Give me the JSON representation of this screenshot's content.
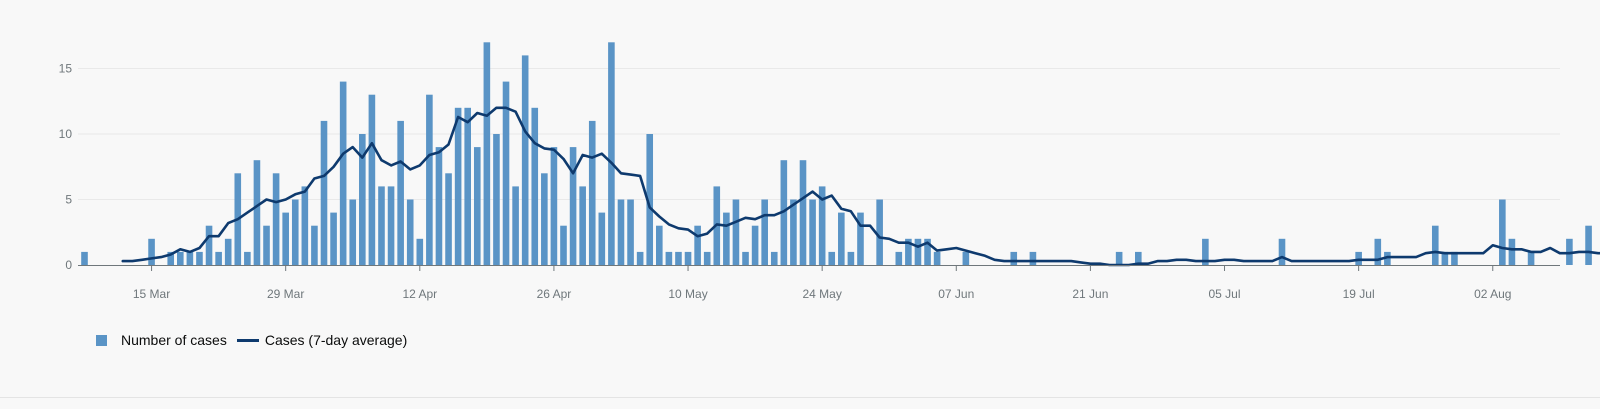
{
  "chart_data": {
    "type": "bar",
    "title": "",
    "xlabel": "",
    "ylabel": "",
    "ylim": [
      0,
      17.5
    ],
    "yticks": [
      0,
      5,
      10,
      15
    ],
    "start_date": "2020-03-08",
    "x_tick_labels": [
      {
        "date": "2020-03-15",
        "label": "15 Mar"
      },
      {
        "date": "2020-03-29",
        "label": "29 Mar"
      },
      {
        "date": "2020-04-12",
        "label": "12 Apr"
      },
      {
        "date": "2020-04-26",
        "label": "26 Apr"
      },
      {
        "date": "2020-05-10",
        "label": "10 May"
      },
      {
        "date": "2020-05-24",
        "label": "24 May"
      },
      {
        "date": "2020-06-07",
        "label": "07 Jun"
      },
      {
        "date": "2020-06-21",
        "label": "21 Jun"
      },
      {
        "date": "2020-07-05",
        "label": "05 Jul"
      },
      {
        "date": "2020-07-19",
        "label": "19 Jul"
      },
      {
        "date": "2020-08-02",
        "label": "02 Aug"
      }
    ],
    "grid": true,
    "legend_position": "bottom-left",
    "series": [
      {
        "name": "Number of cases",
        "type": "bar",
        "color": "#5a94c6",
        "values": [
          1,
          0,
          0,
          0,
          0,
          0,
          0,
          2,
          0,
          1,
          1,
          1,
          1,
          3,
          1,
          2,
          7,
          1,
          8,
          3,
          7,
          4,
          5,
          6,
          3,
          11,
          4,
          14,
          5,
          10,
          13,
          6,
          6,
          11,
          5,
          2,
          13,
          9,
          7,
          12,
          12,
          9,
          17,
          10,
          14,
          6,
          16,
          12,
          7,
          9,
          3,
          9,
          6,
          11,
          4,
          17,
          5,
          5,
          1,
          10,
          3,
          1,
          1,
          1,
          3,
          1,
          6,
          4,
          5,
          1,
          3,
          5,
          1,
          8,
          5,
          8,
          5,
          6,
          1,
          4,
          1,
          4,
          0,
          5,
          0,
          1,
          2,
          2,
          2,
          1,
          0,
          0,
          1,
          0,
          0,
          0,
          0,
          1,
          0,
          1,
          0,
          0,
          0,
          0,
          0,
          0,
          0,
          0,
          1,
          0,
          1,
          0,
          0,
          0,
          0,
          0,
          0,
          2,
          0,
          0,
          0,
          0,
          0,
          0,
          0,
          2,
          0,
          0,
          0,
          0,
          0,
          0,
          0,
          1,
          0,
          2,
          1,
          0,
          0,
          0,
          0,
          3,
          1,
          1,
          0,
          0,
          0,
          0,
          5,
          2,
          0,
          1,
          0,
          0,
          0,
          2,
          0,
          3,
          0
        ]
      },
      {
        "name": "Cases (7-day average)",
        "type": "line",
        "color": "#0e3a6e",
        "start_index": 4,
        "values": [
          0.3,
          0.3,
          0.4,
          0.5,
          0.6,
          0.8,
          1.2,
          1.0,
          1.3,
          2.2,
          2.2,
          3.2,
          3.5,
          4.0,
          4.5,
          5.0,
          4.8,
          5.0,
          5.4,
          5.6,
          6.6,
          6.8,
          7.5,
          8.5,
          9.0,
          8.2,
          9.3,
          8.0,
          7.6,
          7.9,
          7.3,
          7.6,
          8.4,
          8.6,
          9.2,
          11.3,
          10.9,
          11.6,
          11.4,
          12.0,
          12.0,
          11.7,
          10.2,
          9.3,
          8.9,
          8.8,
          8.1,
          7.0,
          8.4,
          8.2,
          8.5,
          7.8,
          7.0,
          6.9,
          6.8,
          4.4,
          3.7,
          3.1,
          2.8,
          2.7,
          2.2,
          2.4,
          3.1,
          3.0,
          3.3,
          3.6,
          3.5,
          3.8,
          3.8,
          4.1,
          4.6,
          5.1,
          5.6,
          5.0,
          5.3,
          4.3,
          4.1,
          3.0,
          3.0,
          2.1,
          2.0,
          1.7,
          1.7,
          1.4,
          1.7,
          1.1,
          1.2,
          1.3,
          1.1,
          0.9,
          0.7,
          0.4,
          0.3,
          0.3,
          0.3,
          0.3,
          0.3,
          0.3,
          0.3,
          0.3,
          0.2,
          0.1,
          0.1,
          0.0,
          0.0,
          0.0,
          0.1,
          0.1,
          0.3,
          0.3,
          0.4,
          0.4,
          0.3,
          0.3,
          0.3,
          0.4,
          0.4,
          0.3,
          0.3,
          0.3,
          0.3,
          0.6,
          0.3,
          0.3,
          0.3,
          0.3,
          0.3,
          0.3,
          0.3,
          0.4,
          0.4,
          0.4,
          0.6,
          0.6,
          0.6,
          0.6,
          0.9,
          1.0,
          0.9,
          0.9,
          0.9,
          0.9,
          0.9,
          1.5,
          1.3,
          1.2,
          1.2,
          1.0,
          1.0,
          1.3,
          0.9,
          0.9,
          1.0,
          1.0,
          0.9,
          0.9
        ]
      }
    ]
  },
  "legend": {
    "bars_label": "Number of cases",
    "line_label": "Cases (7-day average)"
  }
}
